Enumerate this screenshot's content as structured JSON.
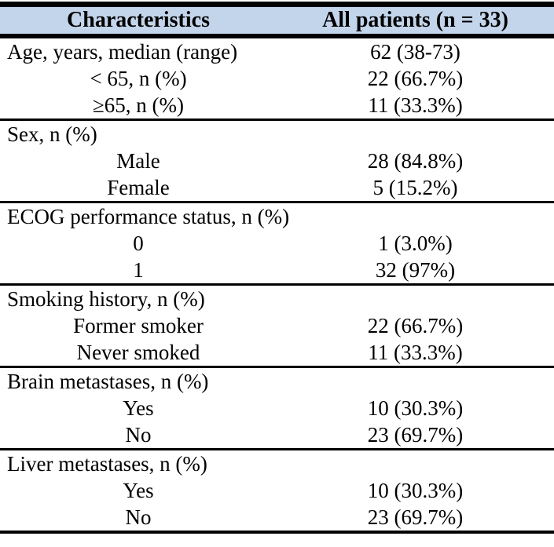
{
  "table": {
    "columns": [
      "Characteristics",
      "All patients (n = 33)"
    ],
    "sections": [
      {
        "rows": [
          {
            "label": "Age, years, median (range)",
            "value": "62 (38-73)",
            "indent": false
          },
          {
            "label": "< 65, n (%)",
            "value": "22 (66.7%)",
            "indent": true
          },
          {
            "label": "≥65, n (%)",
            "value": "11 (33.3%)",
            "indent": true
          }
        ]
      },
      {
        "rows": [
          {
            "label": "Sex, n (%)",
            "value": "",
            "indent": false
          },
          {
            "label": "Male",
            "value": "28 (84.8%)",
            "indent": true
          },
          {
            "label": "Female",
            "value": "5 (15.2%)",
            "indent": true
          }
        ]
      },
      {
        "rows": [
          {
            "label": "ECOG performance status, n (%)",
            "value": "",
            "indent": false
          },
          {
            "label": "0",
            "value": "1 (3.0%)",
            "indent": true
          },
          {
            "label": "1",
            "value": "32 (97%)",
            "indent": true
          }
        ]
      },
      {
        "rows": [
          {
            "label": "Smoking history, n (%)",
            "value": "",
            "indent": false
          },
          {
            "label": "Former smoker",
            "value": "22 (66.7%)",
            "indent": true
          },
          {
            "label": "Never smoked",
            "value": "11 (33.3%)",
            "indent": true
          }
        ]
      },
      {
        "rows": [
          {
            "label": "Brain metastases, n (%)",
            "value": "",
            "indent": false
          },
          {
            "label": "Yes",
            "value": "10 (30.3%)",
            "indent": true
          },
          {
            "label": "No",
            "value": "23 (69.7%)",
            "indent": true
          }
        ]
      },
      {
        "rows": [
          {
            "label": "Liver metastases, n (%)",
            "value": "",
            "indent": false
          },
          {
            "label": "Yes",
            "value": "10 (30.3%)",
            "indent": true
          },
          {
            "label": "No",
            "value": "23 (69.7%)",
            "indent": true
          }
        ]
      }
    ]
  },
  "colors": {
    "header_bg": "#c3d5eb",
    "border": "#000000",
    "text": "#000000",
    "page_bg": "#ffffff"
  }
}
